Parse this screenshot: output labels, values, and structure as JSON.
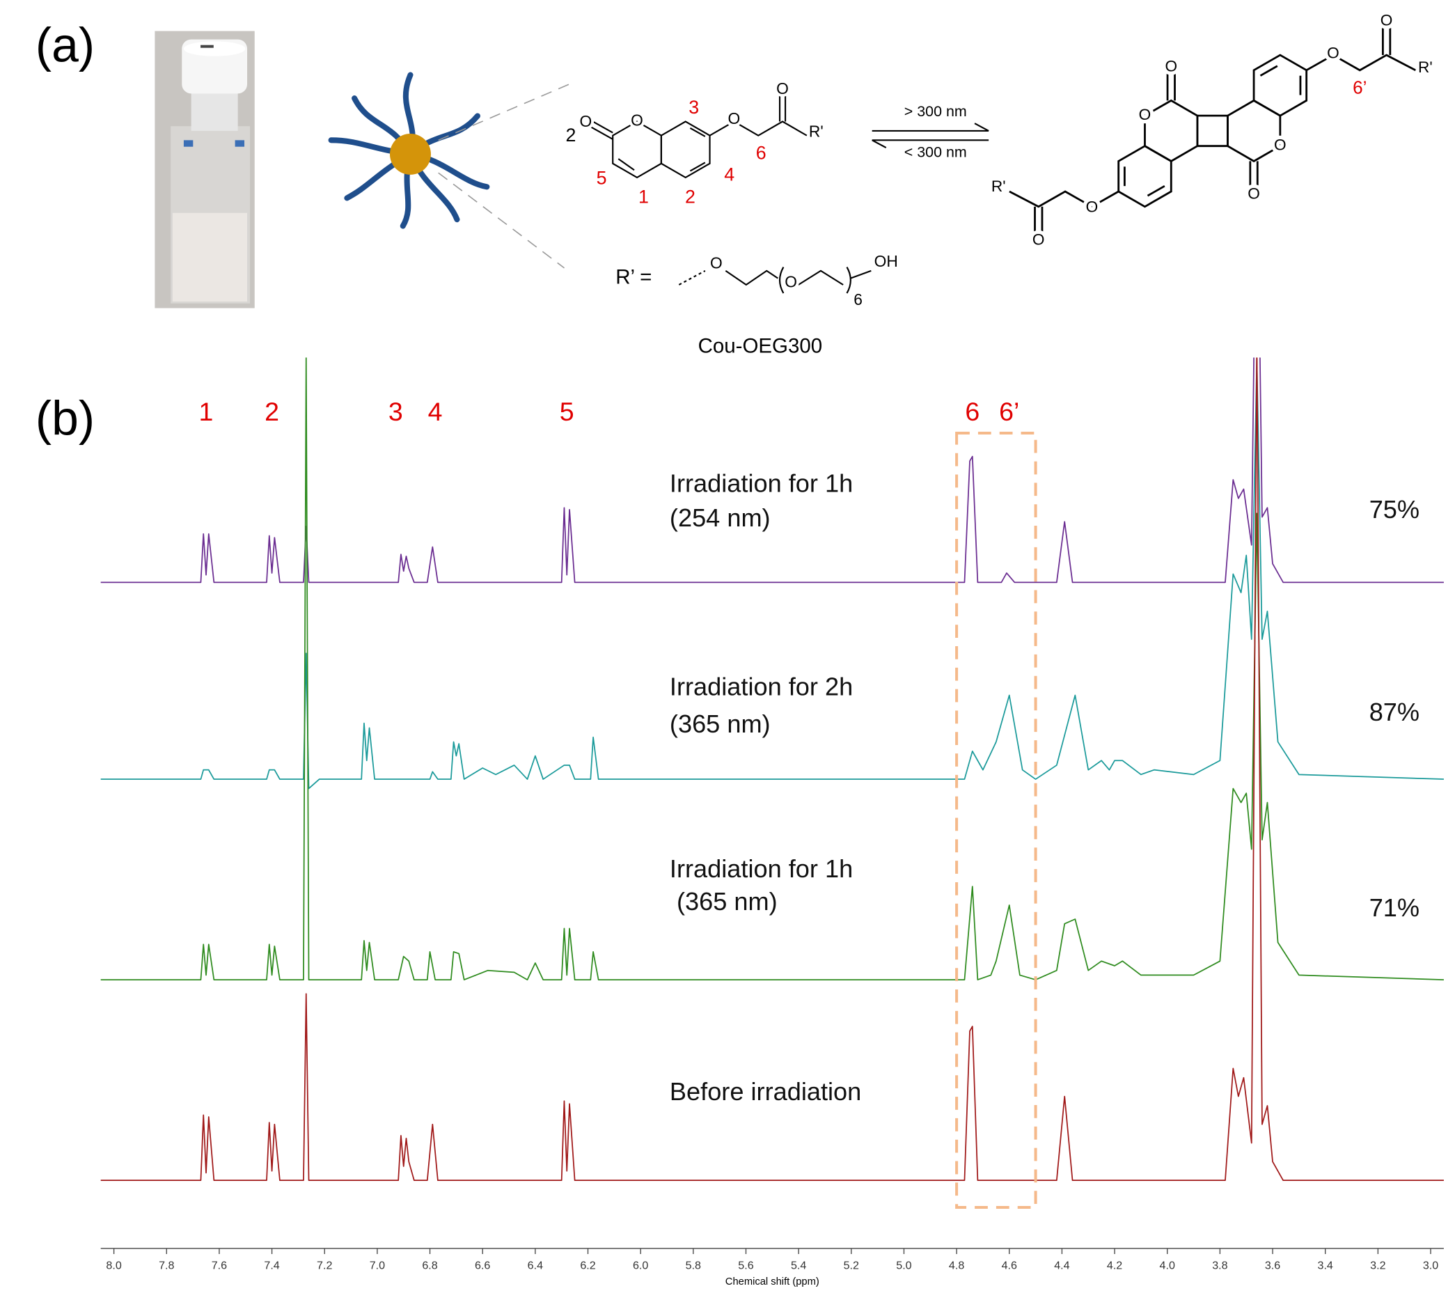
{
  "panel_a": {
    "label": "(a)",
    "monomer": {
      "count": "2",
      "atoms": [
        "O",
        "O",
        "O",
        "O",
        "R'"
      ],
      "positions": [
        "3",
        "5",
        "1",
        "2",
        "4",
        "6"
      ]
    },
    "conditions": [
      "> 300 nm",
      "< 300 nm"
    ],
    "dimer": {
      "atoms": [
        "O",
        "O",
        "O",
        "O",
        "O",
        "O",
        "O",
        "O",
        "R'",
        "R'"
      ],
      "position": "6’"
    },
    "substituent": {
      "label": "R’ =",
      "atoms": [
        "O",
        "O",
        "OH"
      ],
      "repeat": "6"
    },
    "name": "Cou-OEG300"
  },
  "chart_data": {
    "type": "line",
    "panel_label": "(b)",
    "x_label": "Chemical shift (ppm)",
    "xlim": [
      8.05,
      2.95
    ],
    "xticks": [
      {
        "value": 8,
        "label": "8.0"
      },
      7.8,
      7.6,
      7.4,
      7.2,
      {
        "value": 7,
        "label": "7.0"
      },
      6.8,
      6.6,
      6.4,
      6.2,
      {
        "value": 6,
        "label": "6.0"
      },
      5.8,
      5.6,
      5.4,
      5.2,
      {
        "value": 5,
        "label": "5.0"
      },
      4.8,
      4.6,
      4.4,
      4.2,
      {
        "value": 4,
        "label": "4.0"
      },
      3.8,
      3.6,
      3.4,
      3.2,
      {
        "value": 3,
        "label": "3.0"
      }
    ],
    "peak_labels": [
      {
        "text": "1",
        "x": 7.65
      },
      {
        "text": "2",
        "x": 7.4
      },
      {
        "text": "3",
        "x": 6.93
      },
      {
        "text": "4",
        "x": 6.78
      },
      {
        "text": "5",
        "x": 6.28
      },
      {
        "text": "6",
        "x": 4.74
      },
      {
        "text": "6’",
        "x": 4.6
      }
    ],
    "highlight": {
      "xrange": [
        4.8,
        4.5
      ],
      "color": "#f5b98a"
    },
    "series": [
      {
        "name": "Irradiation for 1h",
        "condition": "(254 nm)",
        "annotation": "75%",
        "color": "#6a2c91",
        "x": [
          8.05,
          7.67,
          7.66,
          7.65,
          7.64,
          7.62,
          7.42,
          7.41,
          7.4,
          7.39,
          7.37,
          7.28,
          7.27,
          7.26,
          6.92,
          6.91,
          6.9,
          6.89,
          6.88,
          6.86,
          6.81,
          6.79,
          6.77,
          6.3,
          6.29,
          6.28,
          6.27,
          6.25,
          4.77,
          4.75,
          4.74,
          4.72,
          4.63,
          4.61,
          4.58,
          4.42,
          4.39,
          4.36,
          3.78,
          3.75,
          3.73,
          3.71,
          3.68,
          3.66,
          3.64,
          3.62,
          3.6,
          3.56,
          2.95
        ],
        "values": [
          0,
          0,
          52,
          8,
          52,
          0,
          0,
          50,
          10,
          48,
          0,
          0,
          60,
          0,
          0,
          30,
          12,
          28,
          15,
          0,
          0,
          38,
          0,
          0,
          80,
          8,
          78,
          0,
          0,
          130,
          135,
          0,
          0,
          10,
          0,
          0,
          65,
          0,
          0,
          110,
          90,
          100,
          40,
          500,
          70,
          80,
          20,
          0,
          0
        ]
      },
      {
        "name": "Irradiation for 2h",
        "condition": "(365 nm)",
        "annotation": "87%",
        "color": "#1a9a9a",
        "x": [
          8.05,
          7.67,
          7.66,
          7.64,
          7.62,
          7.42,
          7.41,
          7.39,
          7.37,
          7.28,
          7.27,
          7.26,
          7.22,
          7.06,
          7.05,
          7.04,
          7.03,
          7.01,
          6.8,
          6.79,
          6.77,
          6.72,
          6.71,
          6.7,
          6.69,
          6.67,
          6.6,
          6.55,
          6.48,
          6.43,
          6.4,
          6.37,
          6.29,
          6.27,
          6.25,
          6.19,
          6.18,
          6.16,
          4.77,
          4.74,
          4.7,
          4.65,
          4.6,
          4.55,
          4.5,
          4.42,
          4.35,
          4.3,
          4.25,
          4.22,
          4.2,
          4.17,
          4.1,
          4.05,
          3.9,
          3.8,
          3.75,
          3.72,
          3.7,
          3.68,
          3.66,
          3.64,
          3.62,
          3.58,
          3.5,
          2.95
        ],
        "values": [
          0,
          0,
          10,
          10,
          0,
          0,
          10,
          10,
          0,
          0,
          135,
          -10,
          0,
          0,
          60,
          20,
          55,
          0,
          0,
          8,
          0,
          0,
          40,
          25,
          38,
          0,
          12,
          5,
          15,
          0,
          25,
          0,
          15,
          15,
          0,
          0,
          45,
          0,
          0,
          30,
          10,
          40,
          90,
          10,
          0,
          15,
          90,
          10,
          20,
          10,
          20,
          20,
          5,
          10,
          5,
          20,
          220,
          200,
          240,
          150,
          450,
          150,
          180,
          40,
          5,
          0
        ]
      },
      {
        "name": "Irradiation for 1h",
        "condition": " (365 nm)",
        "annotation": "71%",
        "color": "#2e8b1e",
        "x": [
          8.05,
          7.67,
          7.66,
          7.65,
          7.64,
          7.62,
          7.42,
          7.41,
          7.4,
          7.39,
          7.37,
          7.28,
          7.27,
          7.26,
          7.06,
          7.05,
          7.04,
          7.03,
          7.01,
          6.92,
          6.9,
          6.88,
          6.86,
          6.81,
          6.8,
          6.78,
          6.72,
          6.71,
          6.69,
          6.67,
          6.58,
          6.48,
          6.43,
          6.4,
          6.37,
          6.3,
          6.29,
          6.28,
          6.27,
          6.25,
          6.19,
          6.18,
          6.16,
          4.77,
          4.74,
          4.72,
          4.67,
          4.65,
          4.6,
          4.56,
          4.5,
          4.42,
          4.39,
          4.35,
          4.3,
          4.25,
          4.2,
          4.17,
          4.1,
          3.9,
          3.8,
          3.75,
          3.72,
          3.7,
          3.68,
          3.66,
          3.64,
          3.62,
          3.58,
          3.5,
          2.95
        ],
        "values": [
          0,
          0,
          38,
          5,
          38,
          0,
          0,
          38,
          5,
          36,
          0,
          0,
          670,
          0,
          0,
          42,
          10,
          40,
          0,
          0,
          25,
          20,
          0,
          0,
          30,
          0,
          0,
          30,
          28,
          0,
          10,
          8,
          0,
          18,
          0,
          0,
          55,
          5,
          55,
          0,
          0,
          30,
          0,
          0,
          100,
          0,
          5,
          20,
          80,
          5,
          0,
          10,
          60,
          65,
          10,
          20,
          15,
          20,
          5,
          5,
          20,
          205,
          190,
          200,
          140,
          500,
          150,
          190,
          40,
          5,
          0
        ]
      },
      {
        "name": "Before irradiation",
        "color": "#a01818",
        "x": [
          8.05,
          7.67,
          7.66,
          7.65,
          7.64,
          7.62,
          7.42,
          7.41,
          7.4,
          7.39,
          7.37,
          7.28,
          7.27,
          7.26,
          6.92,
          6.91,
          6.9,
          6.89,
          6.88,
          6.86,
          6.81,
          6.79,
          6.77,
          6.3,
          6.29,
          6.28,
          6.27,
          6.25,
          4.77,
          4.75,
          4.74,
          4.72,
          4.42,
          4.39,
          4.36,
          3.78,
          3.75,
          3.73,
          3.71,
          3.68,
          3.66,
          3.64,
          3.62,
          3.6,
          3.56,
          2.95
        ],
        "values": [
          0,
          0,
          70,
          8,
          68,
          0,
          0,
          62,
          10,
          60,
          0,
          0,
          200,
          0,
          0,
          48,
          15,
          45,
          20,
          0,
          0,
          60,
          0,
          0,
          85,
          10,
          82,
          0,
          0,
          160,
          165,
          0,
          0,
          90,
          0,
          0,
          120,
          90,
          110,
          40,
          900,
          60,
          80,
          20,
          0,
          0
        ]
      }
    ]
  }
}
